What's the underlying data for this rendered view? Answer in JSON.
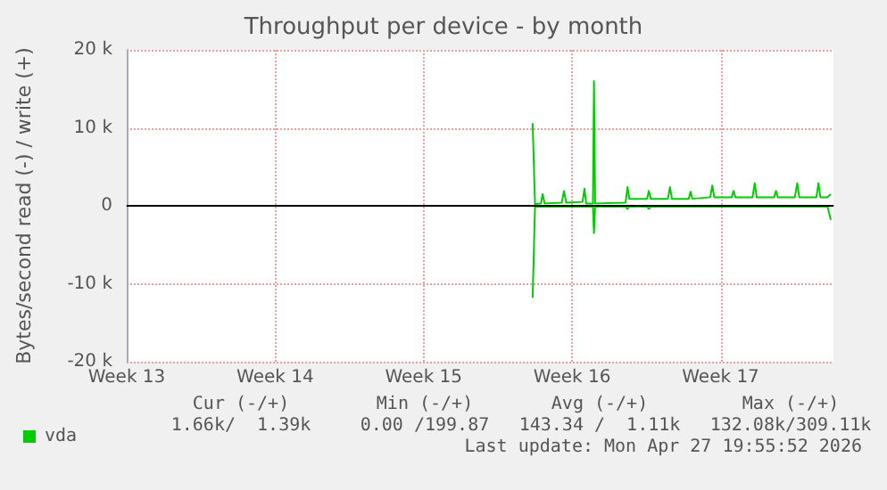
{
  "chart_data": {
    "type": "line",
    "title": "Throughput per device - by month",
    "ylabel": "Bytes/second read (-) / write (+)",
    "xlim": [
      "2026-03-23",
      "2026-04-25T07:41"
    ],
    "xticks": [
      {
        "value": "2026-03-23",
        "label": "Week 13"
      },
      {
        "value": "2026-03-30",
        "label": "Week 14"
      },
      {
        "value": "2026-04-06",
        "label": "Week 15"
      },
      {
        "value": "2026-04-13",
        "label": "Week 16"
      },
      {
        "value": "2026-04-20",
        "label": "Week 17"
      }
    ],
    "ylim": [
      -20000,
      20000
    ],
    "yticks": [
      {
        "value": -20000,
        "label": "-20 k"
      },
      {
        "value": -10000,
        "label": "-10 k"
      },
      0,
      {
        "value": 10000,
        "label": "10 k"
      },
      {
        "value": 20000,
        "label": "20 k"
      }
    ],
    "grid": true,
    "legend": "bottom left",
    "marker": "none",
    "line_style": "solid",
    "ref_lines": [
      {
        "axis": "y",
        "value": 0,
        "color": "#000000"
      }
    ],
    "series": [
      {
        "name": "vda",
        "color": "#00cc00",
        "x": [
          "2026-04-11T03:19",
          "2026-04-11T06:00",
          "2026-04-11T12:43",
          "2026-04-11T14:34",
          "2026-04-11T16:55",
          "2026-04-12T12:14",
          "2026-04-12T14:46",
          "2026-04-12T17:17",
          "2026-04-13T11:46",
          "2026-04-13T13:57",
          "2026-04-13T15:58",
          "2026-04-13T23:31",
          "2026-04-14T00:42",
          "2026-04-14T02:02",
          "2026-04-15T12:29",
          "2026-04-15T14:40",
          "2026-04-15T16:41",
          "2026-04-16T12:50",
          "2026-04-16T14:41",
          "2026-04-16T17:02",
          "2026-04-17T12:22",
          "2026-04-17T14:43",
          "2026-04-17T16:54",
          "2026-04-18T11:53",
          "2026-04-18T14:04",
          "2026-04-18T16:05",
          "2026-04-19T12:14",
          "2026-04-19T14:36",
          "2026-04-19T16:47",
          "2026-04-20T12:36",
          "2026-04-20T14:37",
          "2026-04-20T16:48",
          "2026-04-21T12:07",
          "2026-04-21T14:38",
          "2026-04-21T16:49",
          "2026-04-22T12:29",
          "2026-04-22T14:40",
          "2026-04-22T16:51",
          "2026-04-23T12:00",
          "2026-04-23T14:41",
          "2026-04-23T17:02",
          "2026-04-24T12:22",
          "2026-04-24T14:43",
          "2026-04-24T16:54",
          "2026-04-25T00:58",
          "2026-04-25T04:39"
        ],
        "values": [
          10600,
          200,
          300,
          1500,
          300,
          400,
          1900,
          400,
          500,
          2200,
          300,
          300,
          16000,
          300,
          400,
          2400,
          900,
          900,
          1900,
          900,
          900,
          2400,
          900,
          900,
          1800,
          900,
          1100,
          2600,
          1100,
          1100,
          1900,
          1100,
          1100,
          2900,
          1100,
          1100,
          1900,
          1100,
          1100,
          2900,
          1100,
          1100,
          2900,
          1100,
          1100,
          1500
        ]
      },
      {
        "color": "#00cc00",
        "x": [
          "2026-04-11T03:19",
          "2026-04-11T06:00",
          "2026-04-13T23:31",
          "2026-04-14T00:42",
          "2026-04-14T02:02",
          "2026-04-15T12:29",
          "2026-04-15T14:40",
          "2026-04-15T16:41",
          "2026-04-16T12:50",
          "2026-04-16T14:41",
          "2026-04-16T17:02",
          "2026-04-25T00:58",
          "2026-04-25T04:39"
        ],
        "values": [
          -11800,
          -100,
          -100,
          -3500,
          -100,
          -100,
          -400,
          -100,
          -100,
          -400,
          -100,
          -100,
          -1800
        ]
      }
    ],
    "annotations": [
      "Cur (-/+)",
      "Min (-/+)",
      "Avg (-/+)",
      "Max (-/+)",
      "1.66k/  1.39k",
      "0.00 /199.87",
      "143.34 /  1.11k",
      "132.08k/309.11k",
      "Last update: Mon Apr 27 19:55:52 2026"
    ]
  }
}
